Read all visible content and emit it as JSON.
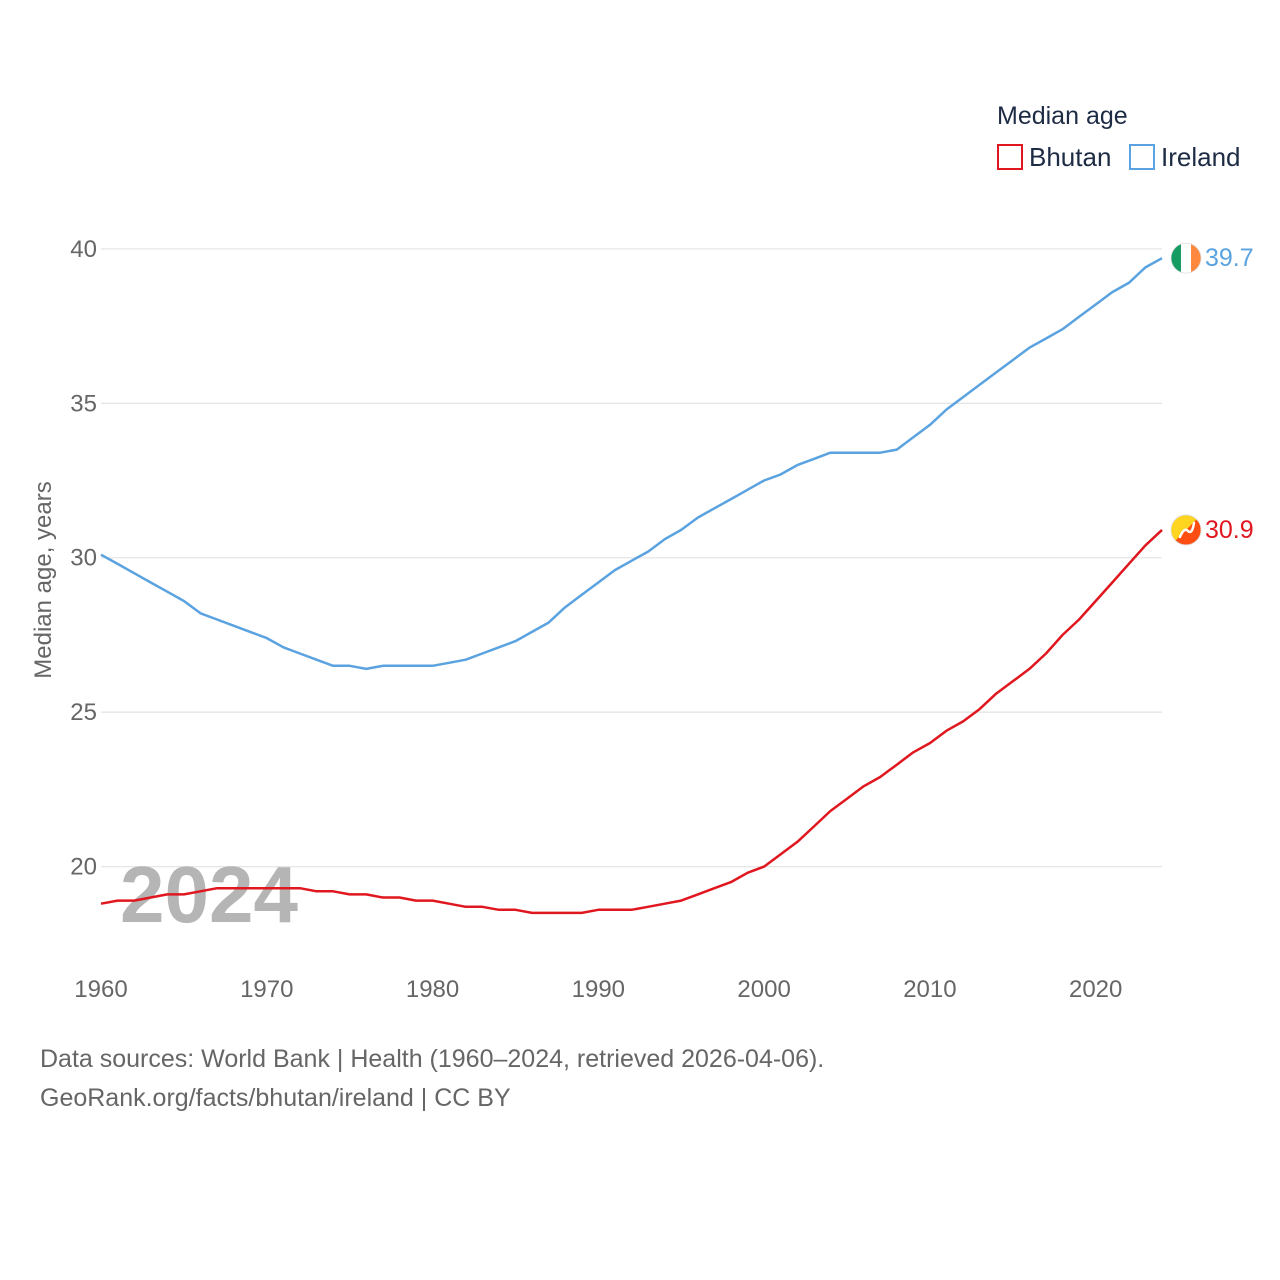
{
  "chart_data": {
    "type": "line",
    "title": "",
    "xlabel": "",
    "ylabel": "Median age, years",
    "legend_title": "Median age",
    "legend_position": "top-right",
    "watermark_year": "2024",
    "xlim": [
      1960,
      2024
    ],
    "ylim": [
      17.3,
      41
    ],
    "x_ticks": [
      1960,
      1970,
      1980,
      1990,
      2000,
      2010,
      2020
    ],
    "y_ticks": [
      20,
      25,
      30,
      35,
      40
    ],
    "grid": true,
    "x": [
      1960,
      1961,
      1962,
      1963,
      1964,
      1965,
      1966,
      1967,
      1968,
      1969,
      1970,
      1971,
      1972,
      1973,
      1974,
      1975,
      1976,
      1977,
      1978,
      1979,
      1980,
      1981,
      1982,
      1983,
      1984,
      1985,
      1986,
      1987,
      1988,
      1989,
      1990,
      1991,
      1992,
      1993,
      1994,
      1995,
      1996,
      1997,
      1998,
      1999,
      2000,
      2001,
      2002,
      2003,
      2004,
      2005,
      2006,
      2007,
      2008,
      2009,
      2010,
      2011,
      2012,
      2013,
      2014,
      2015,
      2016,
      2017,
      2018,
      2019,
      2020,
      2021,
      2022,
      2023,
      2024
    ],
    "series": [
      {
        "name": "Bhutan",
        "color": "#e0171f",
        "end_label": "30.9",
        "values": [
          18.8,
          18.9,
          18.9,
          19.0,
          19.1,
          19.1,
          19.2,
          19.3,
          19.3,
          19.3,
          19.3,
          19.3,
          19.3,
          19.2,
          19.2,
          19.1,
          19.1,
          19.0,
          19.0,
          18.9,
          18.9,
          18.8,
          18.7,
          18.7,
          18.6,
          18.6,
          18.5,
          18.5,
          18.5,
          18.5,
          18.6,
          18.6,
          18.6,
          18.7,
          18.8,
          18.9,
          19.1,
          19.3,
          19.5,
          19.8,
          20.0,
          20.4,
          20.8,
          21.3,
          21.8,
          22.2,
          22.6,
          22.9,
          23.3,
          23.7,
          24.0,
          24.4,
          24.7,
          25.1,
          25.6,
          26.0,
          26.4,
          26.9,
          27.5,
          28.0,
          28.6,
          29.2,
          29.8,
          30.4,
          30.9
        ]
      },
      {
        "name": "Ireland",
        "color": "#5ba3e0",
        "end_label": "39.7",
        "values": [
          30.1,
          29.8,
          29.5,
          29.2,
          28.9,
          28.6,
          28.2,
          28.0,
          27.8,
          27.6,
          27.4,
          27.1,
          26.9,
          26.7,
          26.5,
          26.5,
          26.4,
          26.5,
          26.5,
          26.5,
          26.5,
          26.6,
          26.7,
          26.9,
          27.1,
          27.3,
          27.6,
          27.9,
          28.4,
          28.8,
          29.2,
          29.6,
          29.9,
          30.2,
          30.6,
          30.9,
          31.3,
          31.6,
          31.9,
          32.2,
          32.5,
          32.7,
          33.0,
          33.2,
          33.4,
          33.4,
          33.4,
          33.4,
          33.5,
          33.9,
          34.3,
          34.8,
          35.2,
          35.6,
          36.0,
          36.4,
          36.8,
          37.1,
          37.4,
          37.8,
          38.2,
          38.6,
          38.9,
          39.4,
          39.7
        ]
      }
    ]
  },
  "footer": {
    "line1": "Data sources: World Bank | Health (1960–2024, retrieved 2026-04-06).",
    "line2": "GeoRank.org/facts/bhutan/ireland | CC BY"
  },
  "flags": {
    "ireland": {
      "icon": "ireland-flag-icon",
      "colors": [
        "#169b62",
        "#ffffff",
        "#ff883e"
      ]
    },
    "bhutan": {
      "icon": "bhutan-flag-icon",
      "colors": [
        "#ffd520",
        "#ff4e12"
      ]
    }
  }
}
